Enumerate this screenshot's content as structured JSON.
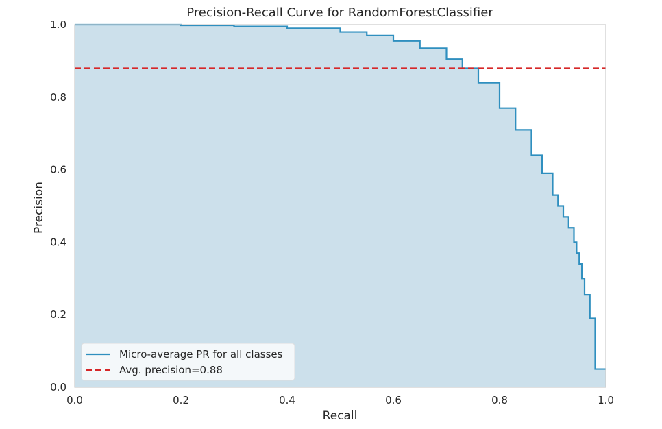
{
  "chart_data": {
    "type": "line",
    "title": "Precision-Recall Curve for RandomForestClassifier",
    "xlabel": "Recall",
    "ylabel": "Precision",
    "xlim": [
      0.0,
      1.0
    ],
    "ylim": [
      0.0,
      1.0
    ],
    "x_ticks": [
      "0.0",
      "0.2",
      "0.4",
      "0.6",
      "0.8",
      "1.0"
    ],
    "y_ticks": [
      "0.0",
      "0.2",
      "0.4",
      "0.6",
      "0.8",
      "1.0"
    ],
    "grid": false,
    "legend_position": "lower-left",
    "series": [
      {
        "name": "Micro-average PR for all classes",
        "style": "step",
        "fill_under": true,
        "color": "#2f8fbf",
        "fill_color": "#cce0eb",
        "x": [
          0.0,
          0.2,
          0.3,
          0.4,
          0.5,
          0.55,
          0.6,
          0.65,
          0.7,
          0.73,
          0.76,
          0.8,
          0.83,
          0.86,
          0.88,
          0.9,
          0.91,
          0.92,
          0.93,
          0.94,
          0.945,
          0.95,
          0.955,
          0.96,
          0.965,
          0.97,
          0.975,
          0.98,
          0.985,
          1.0
        ],
        "y": [
          1.0,
          0.998,
          0.995,
          0.99,
          0.98,
          0.97,
          0.955,
          0.935,
          0.905,
          0.88,
          0.84,
          0.77,
          0.71,
          0.64,
          0.59,
          0.53,
          0.5,
          0.47,
          0.44,
          0.4,
          0.37,
          0.34,
          0.3,
          0.255,
          0.255,
          0.19,
          0.19,
          0.05,
          0.05,
          0.05
        ]
      },
      {
        "name": "Avg. precision=0.88",
        "style": "dashed",
        "color": "#d62728",
        "y_constant": 0.88
      }
    ]
  }
}
